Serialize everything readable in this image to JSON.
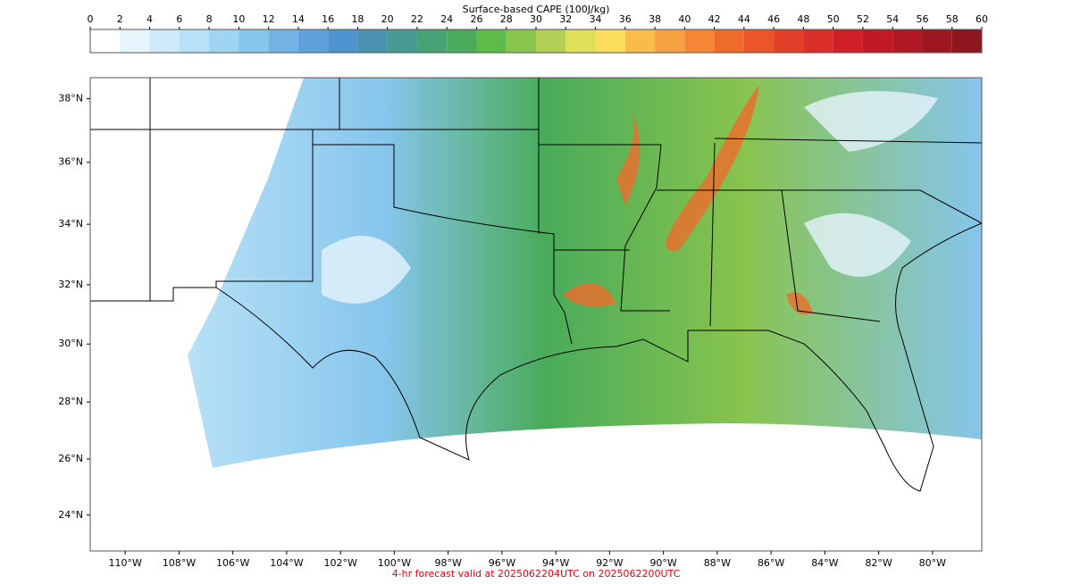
{
  "colorbar": {
    "label": "Surface-based CAPE (100J/kg)",
    "ticks": [
      0,
      2,
      4,
      6,
      8,
      10,
      12,
      14,
      16,
      18,
      20,
      22,
      24,
      26,
      28,
      30,
      32,
      34,
      36,
      38,
      40,
      42,
      44,
      46,
      48,
      50,
      52,
      54,
      56,
      58,
      60
    ],
    "colors": [
      "#ffffff",
      "#e6f4fc",
      "#cfe9f8",
      "#b7e1f6",
      "#9fd5f3",
      "#86c5ec",
      "#72b3e3",
      "#5fa2db",
      "#4d93d0",
      "#4a92b0",
      "#479b92",
      "#47a376",
      "#49ab5a",
      "#5fbb47",
      "#88c44e",
      "#b1d055",
      "#dee05a",
      "#fbdd5c",
      "#f8bc4a",
      "#f7a240",
      "#f48635",
      "#ef6b2c",
      "#eb5528",
      "#e13f27",
      "#d92f28",
      "#cf1f27",
      "#bf1a25",
      "#ae1823",
      "#9d1721",
      "#8e171f"
    ]
  },
  "map": {
    "lonlim": [
      -111.3,
      -78.17
    ],
    "latlim": [
      22.7,
      38.65
    ],
    "lat_ticks": [
      {
        "value": 24,
        "label": "24°N"
      },
      {
        "value": 26,
        "label": "26°N"
      },
      {
        "value": 28,
        "label": "28°N"
      },
      {
        "value": 30,
        "label": "30°N"
      },
      {
        "value": 32,
        "label": "32°N"
      },
      {
        "value": 34,
        "label": "34°N"
      },
      {
        "value": 36,
        "label": "36°N"
      },
      {
        "value": 38,
        "label": "38°N"
      }
    ],
    "lon_ticks": [
      {
        "value": -110,
        "label": "110°W"
      },
      {
        "value": -108,
        "label": "108°W"
      },
      {
        "value": -106,
        "label": "106°W"
      },
      {
        "value": -104,
        "label": "104°W"
      },
      {
        "value": -102,
        "label": "102°W"
      },
      {
        "value": -100,
        "label": "100°W"
      },
      {
        "value": -98,
        "label": "98°W"
      },
      {
        "value": -96,
        "label": "96°W"
      },
      {
        "value": -94,
        "label": "94°W"
      },
      {
        "value": -92,
        "label": "92°W"
      },
      {
        "value": -90,
        "label": "90°W"
      },
      {
        "value": -88,
        "label": "88°W"
      },
      {
        "value": -86,
        "label": "86°W"
      },
      {
        "value": -84,
        "label": "84°W"
      },
      {
        "value": -82,
        "label": "82°W"
      },
      {
        "value": -80,
        "label": "80°W"
      }
    ]
  },
  "footer": "4-hr forecast valid at 2025062204UTC on 2025062200UTC"
}
